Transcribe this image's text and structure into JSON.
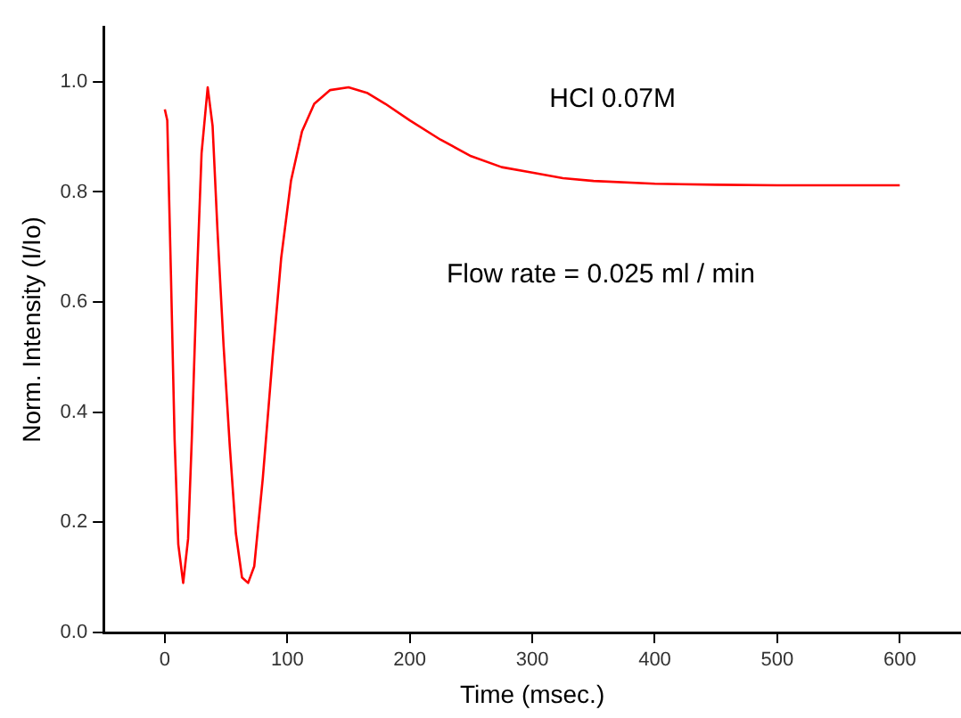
{
  "chart_data": {
    "type": "line",
    "xlabel": "Time (msec.)",
    "ylabel": "Norm. Intensity (I/Io)",
    "annotations": [
      "HCl 0.07M",
      "Flow rate = 0.025 ml / min"
    ],
    "x": [
      0,
      2,
      5,
      8,
      11,
      15,
      19,
      22,
      26,
      30,
      35,
      39,
      43,
      48,
      53,
      58,
      63,
      68,
      73,
      80,
      88,
      95,
      103,
      112,
      122,
      135,
      150,
      165,
      180,
      200,
      225,
      250,
      275,
      300,
      325,
      350,
      400,
      450,
      500,
      600
    ],
    "series": [
      {
        "color": "#ff0000",
        "values": [
          0.95,
          0.93,
          0.65,
          0.35,
          0.16,
          0.09,
          0.17,
          0.35,
          0.63,
          0.87,
          0.99,
          0.92,
          0.73,
          0.52,
          0.34,
          0.18,
          0.1,
          0.09,
          0.12,
          0.28,
          0.5,
          0.68,
          0.82,
          0.91,
          0.96,
          0.985,
          0.99,
          0.98,
          0.96,
          0.93,
          0.895,
          0.865,
          0.845,
          0.835,
          0.825,
          0.82,
          0.815,
          0.813,
          0.812,
          0.812
        ]
      }
    ],
    "xlim": [
      -50,
      650
    ],
    "xticks": [
      0,
      100,
      200,
      300,
      400,
      500,
      600
    ],
    "ylim": [
      0,
      1.1
    ],
    "yticks": [
      {
        "value": 0,
        "label": "0.0"
      },
      0.2,
      0.4,
      0.6,
      0.8,
      {
        "value": 1,
        "label": "1.0"
      }
    ],
    "grid": false,
    "legend": false,
    "marker": "none",
    "line_style": "solid"
  }
}
